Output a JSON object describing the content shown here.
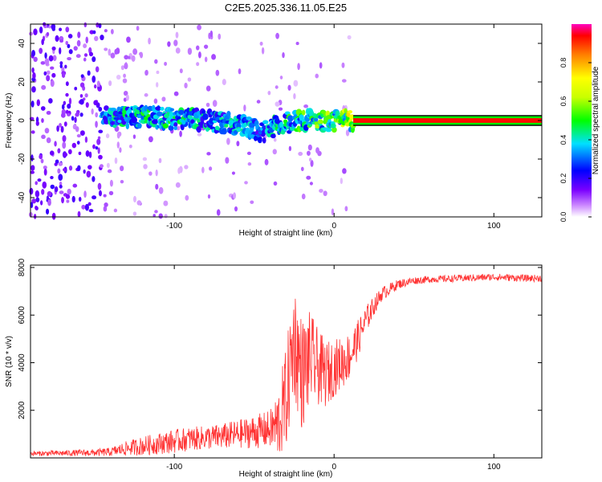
{
  "title": "C2E5.2025.336.11.05.E25",
  "chart_data": [
    {
      "type": "heatmap",
      "title": "C2E5.2025.336.11.05.E25",
      "xlabel": "Height of straight line (km)",
      "ylabel": "Frequency (Hz)",
      "xlim": [
        -190,
        130
      ],
      "ylim": [
        -50,
        50
      ],
      "xticks": [
        -100,
        0,
        100
      ],
      "yticks": [
        -40,
        -20,
        0,
        20,
        40
      ],
      "colorbar": {
        "label": "Normalized spectral amplitude",
        "range": [
          0,
          1
        ],
        "ticks": [
          0.0,
          0.2,
          0.4,
          0.6,
          0.8
        ],
        "colors": [
          "#ffffff",
          "#cc88ff",
          "#7a00ff",
          "#0000ff",
          "#00e0ff",
          "#00ff00",
          "#ffff00",
          "#ff8000",
          "#ff0000",
          "#ff00c0"
        ]
      },
      "ridge": [
        {
          "x": -140,
          "y": 2,
          "amp": 0.35
        },
        {
          "x": -120,
          "y": 2,
          "amp": 0.4
        },
        {
          "x": -100,
          "y": 1,
          "amp": 0.4
        },
        {
          "x": -80,
          "y": 0,
          "amp": 0.35
        },
        {
          "x": -60,
          "y": -2,
          "amp": 0.35
        },
        {
          "x": -45,
          "y": -6,
          "amp": 0.3
        },
        {
          "x": -35,
          "y": -2,
          "amp": 0.4
        },
        {
          "x": -20,
          "y": 0,
          "amp": 0.45
        },
        {
          "x": 0,
          "y": 0,
          "amp": 0.5
        },
        {
          "x": 10,
          "y": 0,
          "amp": 0.6
        },
        {
          "x": 50,
          "y": 0,
          "amp": 1.0
        },
        {
          "x": 130,
          "y": 0,
          "amp": 1.0
        }
      ]
    },
    {
      "type": "line",
      "xlabel": "Height of straight line (km)",
      "ylabel": "SNR (10 * v/v)",
      "xlim": [
        -190,
        130
      ],
      "ylim": [
        0,
        8100
      ],
      "xticks": [
        -100,
        0,
        100
      ],
      "yticks": [
        2000,
        4000,
        6000,
        8000
      ],
      "color": "#ff3333",
      "series": [
        {
          "name": "SNR",
          "x": [
            -190,
            -170,
            -150,
            -140,
            -130,
            -120,
            -110,
            -100,
            -90,
            -80,
            -70,
            -60,
            -50,
            -40,
            -35,
            -30,
            -25,
            -20,
            -15,
            -10,
            -5,
            0,
            5,
            10,
            15,
            20,
            25,
            30,
            40,
            50,
            60,
            80,
            100,
            120,
            130
          ],
          "y": [
            180,
            200,
            220,
            250,
            400,
            500,
            600,
            700,
            800,
            850,
            900,
            1000,
            1100,
            1200,
            1400,
            2500,
            5000,
            3500,
            4200,
            3800,
            3500,
            3800,
            4000,
            4300,
            5000,
            5800,
            6400,
            6900,
            7300,
            7450,
            7500,
            7550,
            7600,
            7550,
            7550
          ],
          "noise": [
            100,
            120,
            150,
            180,
            300,
            400,
            450,
            500,
            500,
            500,
            550,
            600,
            700,
            800,
            1500,
            2200,
            2500,
            2400,
            2000,
            1600,
            1400,
            1200,
            1100,
            1000,
            800,
            600,
            400,
            300,
            200,
            160,
            150,
            150,
            150,
            150,
            150
          ]
        }
      ]
    }
  ]
}
